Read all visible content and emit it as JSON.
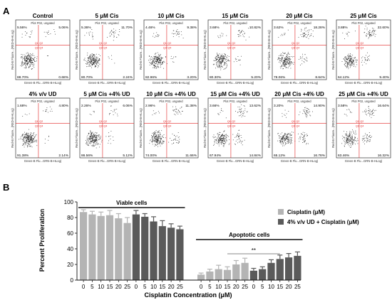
{
  "panels": {
    "a": "A",
    "b": "B"
  },
  "flow": {
    "plot_title": "Plot P02, ungated",
    "y_axis_label": "Red-B Fluore...(RED-B-HLog)",
    "x_axis_label": "Green-B Flu...GRN-B-HLog)",
    "gate_labels": [
      "Q1",
      "Q2",
      "Q3",
      "Q4"
    ],
    "rows": [
      [
        {
          "title": "Control",
          "ul": "5.56%",
          "ur": "5.06%",
          "ll": "88.70%",
          "lr": "0.68%"
        },
        {
          "title": "5 μM Cis",
          "ul": "5.36%",
          "ur": "11.70%",
          "ll": "80.70%",
          "lr": "2.24%"
        },
        {
          "title": "10 μM Cis",
          "ul": "4.46%",
          "ur": "9.38%",
          "ll": "82.96%",
          "lr": "3.20%"
        },
        {
          "title": "15 μM Cis",
          "ul": "3.68%",
          "ur": "10.82%",
          "ll": "80.30%",
          "lr": "5.20%"
        },
        {
          "title": "20 μM Cis",
          "ul": "3.62%",
          "ur": "18.28%",
          "ll": "78.06%",
          "lr": "8.64%"
        },
        {
          "title": "25 μM Cis",
          "ul": "3.88%",
          "ur": "22.60%",
          "ll": "64.12%",
          "lr": "9.40%"
        }
      ],
      [
        {
          "title": "4% v/v UD",
          "ul": "1.68%",
          "ur": "4.80%",
          "ll": "91.38%",
          "lr": "2.14%"
        },
        {
          "title": "5 μM Cis +4% UD",
          "ul": "2.26%",
          "ur": "6.06%",
          "ll": "86.56%",
          "lr": "5.12%"
        },
        {
          "title": "10 μM Cis +4% UD",
          "ul": "2.96%",
          "ur": "11.38%",
          "ll": "74.00%",
          "lr": "11.66%"
        },
        {
          "title": "15 μM Cis +4% UD",
          "ul": "3.66%",
          "ur": "13.62%",
          "ll": "67.94%",
          "lr": "14.84%"
        },
        {
          "title": "20 μM Cis +4% UD",
          "ul": "3.20%",
          "ur": "14.90%",
          "ll": "65.12%",
          "lr": "16.78%"
        },
        {
          "title": "25 μM Cis +4% UD",
          "ul": "3.58%",
          "ur": "16.64%",
          "ll": "63.46%",
          "lr": "16.32%"
        }
      ]
    ]
  },
  "chart_data": {
    "type": "bar",
    "ylabel": "Percent Proliferation",
    "xlabel": "Cisplatin Concentration (μM)",
    "ylim": [
      0,
      100
    ],
    "yticks": [
      0,
      20,
      40,
      60,
      80,
      100
    ],
    "categories": [
      "0",
      "5",
      "10",
      "15",
      "20",
      "25"
    ],
    "series": [
      {
        "name": "Cisplatin (μM)",
        "color": "#b4b4b4",
        "viable": [
          87,
          84,
          82,
          83,
          79,
          73
        ],
        "viable_err": [
          3,
          4,
          5,
          6,
          6,
          7
        ],
        "apoptotic": [
          7,
          11,
          14,
          13,
          20,
          22
        ],
        "apoptotic_err": [
          2,
          3,
          5,
          4,
          5,
          6
        ]
      },
      {
        "name": "4% v/v UD + Cisplatin (μM)",
        "color": "#5a5a5a",
        "viable": [
          84,
          81,
          75,
          69,
          67,
          65
        ],
        "viable_err": [
          5,
          4,
          6,
          7,
          5,
          4
        ],
        "apoptotic": [
          12,
          14,
          22,
          27,
          29,
          31
        ],
        "apoptotic_err": [
          3,
          3,
          4,
          5,
          5,
          5
        ]
      }
    ],
    "group_labels": [
      "Viable cells",
      "Apoptotic cells"
    ],
    "significance": "**",
    "legend_position": "top-right"
  }
}
